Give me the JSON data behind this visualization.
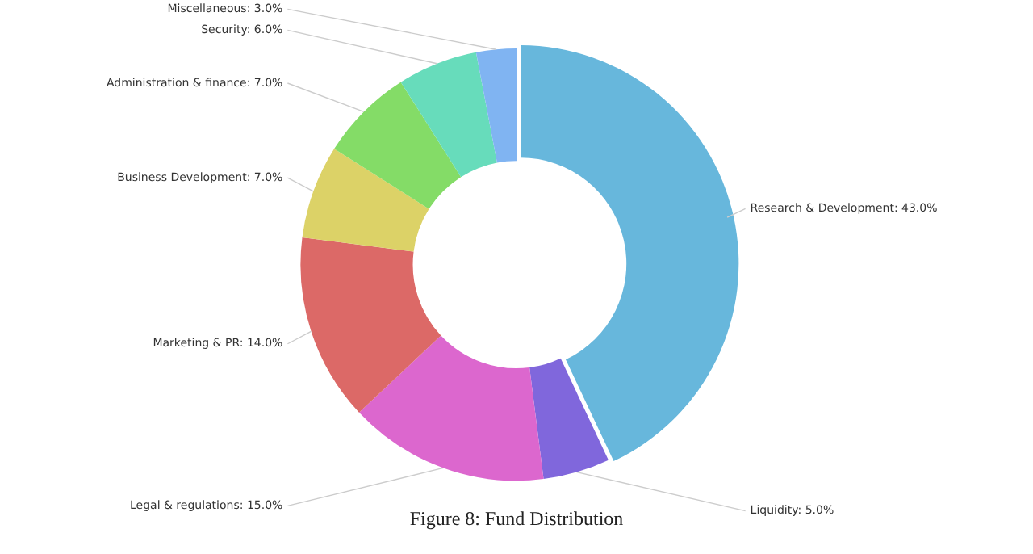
{
  "chart_data": {
    "type": "donut",
    "title": "Figure 8: Fund Distribution",
    "categories": [
      "Research & Development",
      "Liquidity",
      "Legal & regulations",
      "Marketing & PR",
      "Business Development",
      "Administration & finance",
      "Security",
      "Miscellaneous"
    ],
    "values": [
      43,
      5,
      15,
      14,
      7,
      7,
      6,
      3
    ],
    "value_labels": [
      "43.0%",
      "5.0%",
      "15.0%",
      "14.0%",
      "7.0%",
      "7.0%",
      "6.0%",
      "3.0%"
    ],
    "colors": [
      "#67b7dc",
      "#8067dc",
      "#dc67ce",
      "#dc6967",
      "#dcd267",
      "#84dc67",
      "#67dcbb",
      "#80b4f2"
    ],
    "legend": false
  }
}
